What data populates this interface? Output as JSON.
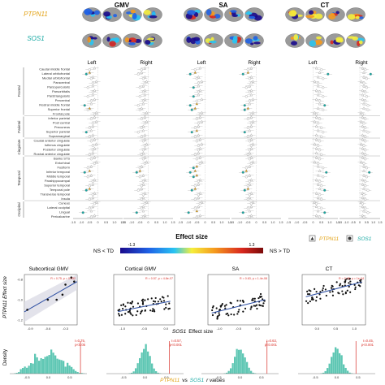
{
  "chart_data": [
    {
      "type": "scatter",
      "panel": "effect-size forest plot",
      "measures": [
        "GMV",
        "SA",
        "CT"
      ],
      "hemispheres": [
        "Left",
        "Right"
      ],
      "genes": [
        "PTPN11",
        "SOS1"
      ],
      "gene_colors": {
        "PTPN11": "#e3a317",
        "SOS1": "#17a9a3"
      },
      "xticks": [
        "-1.5",
        "-1.0",
        "-0.5",
        "0",
        "0.5",
        "1.0",
        "1.5"
      ],
      "xlim": [
        -1.5,
        1.5
      ],
      "regions": [
        "Caudal middle frontal",
        "Lateral orbitofrontal",
        "Medial orbitofrontal",
        "Paracentral",
        "Parsopercularis",
        "Parsorbitalis",
        "Parstriangularis",
        "Precentral",
        "Rostral middle frontal",
        "Superior frontal",
        "Frontal pole",
        "Inferior parietal",
        "Post central",
        "Precuneus",
        "Superior parietal",
        "Supramarginal",
        "Caudal anterior cingulate",
        "Isthmus cingulate",
        "Posterior cingulate",
        "Rostral anterior cingulate",
        "Banks STS",
        "Entorhinal",
        "Fusiform",
        "Inferior temporal",
        "Middle temporal",
        "Parahippocampal",
        "Superior temporal",
        "Temporal pole",
        "Transverse temporal",
        "Insula",
        "Cuneus",
        "Lateral occipital",
        "Lingual",
        "Pericalcarine"
      ],
      "lobes": [
        {
          "name": "Frontal",
          "start": 0,
          "end": 10
        },
        {
          "name": "Parietal",
          "start": 11,
          "end": 15
        },
        {
          "name": "Cingulate",
          "start": 16,
          "end": 19
        },
        {
          "name": "Temporal",
          "start": 20,
          "end": 29
        },
        {
          "name": "Occipital",
          "start": 30,
          "end": 33
        }
      ],
      "series": [
        {
          "name": "PTPN11",
          "measure": "GMV",
          "hemisphere": "Left",
          "values": [
            -0.2,
            -0.5,
            -0.3,
            -0.1,
            -0.3,
            -0.2,
            -0.3,
            -0.2,
            -0.4,
            -0.5,
            -0.1,
            -0.2,
            -0.1,
            -0.3,
            -0.4,
            -0.3,
            -0.2,
            -0.1,
            -0.2,
            -0.3,
            -0.2,
            -0.1,
            -0.4,
            -0.5,
            -0.4,
            -0.2,
            -0.3,
            -0.5,
            -0.2,
            -0.3,
            -0.1,
            -0.3,
            -0.4,
            -0.2
          ]
        },
        {
          "name": "SOS1",
          "measure": "GMV",
          "hemisphere": "Left",
          "values": [
            -0.5,
            -0.7,
            -0.4,
            -0.3,
            -0.6,
            -0.3,
            -0.6,
            -0.4,
            -0.8,
            -0.6,
            -0.2,
            -0.4,
            -0.3,
            -0.5,
            -0.7,
            -0.5,
            -0.4,
            -0.3,
            -0.3,
            -0.5,
            -0.4,
            -0.2,
            -0.6,
            -0.8,
            -0.6,
            -0.3,
            -0.5,
            -0.7,
            -0.3,
            -0.5,
            -0.2,
            -0.5,
            -0.9,
            -0.4
          ]
        },
        {
          "name": "PTPN11",
          "measure": "GMV",
          "hemisphere": "Right",
          "values": [
            -0.2,
            -0.4,
            -0.2,
            -0.1,
            -0.3,
            -0.2,
            -0.2,
            -0.2,
            -0.3,
            -0.4,
            -0.1,
            -0.2,
            -0.1,
            -0.3,
            -0.3,
            -0.2,
            -0.2,
            -0.1,
            -0.2,
            -0.3,
            -0.2,
            -0.1,
            -0.4,
            -0.5,
            -0.3,
            -0.2,
            -0.3,
            -0.4,
            -0.2,
            -0.3,
            -0.1,
            -0.3,
            -0.3,
            -0.2
          ]
        },
        {
          "name": "SOS1",
          "measure": "GMV",
          "hemisphere": "Right",
          "values": [
            -0.4,
            -0.6,
            -0.3,
            -0.2,
            -0.5,
            -0.3,
            -0.5,
            -0.3,
            -0.6,
            -0.5,
            -0.2,
            -0.4,
            -0.2,
            -0.4,
            -0.6,
            -0.4,
            -0.3,
            -0.2,
            -0.3,
            -0.4,
            -0.3,
            -0.2,
            -0.5,
            -0.7,
            -0.5,
            -0.3,
            -0.4,
            -0.6,
            -0.3,
            -0.4,
            -0.2,
            -0.4,
            -0.7,
            -0.3
          ]
        },
        {
          "name": "PTPN11",
          "measure": "SA",
          "hemisphere": "Left",
          "values": [
            -0.3,
            -0.6,
            -0.4,
            -0.2,
            -0.4,
            -0.3,
            -0.4,
            -0.2,
            -0.5,
            -0.6,
            -0.2,
            -0.3,
            -0.2,
            -0.4,
            -0.5,
            -0.4,
            -0.3,
            -0.2,
            -0.3,
            -0.4,
            -0.3,
            -0.2,
            -0.5,
            -0.6,
            -0.5,
            -0.3,
            -0.4,
            -0.6,
            -0.3,
            -0.4,
            -0.2,
            -0.4,
            -0.5,
            -0.3
          ]
        },
        {
          "name": "SOS1",
          "measure": "SA",
          "hemisphere": "Left",
          "values": [
            -0.6,
            -0.9,
            -0.5,
            -0.4,
            -0.7,
            -0.4,
            -0.7,
            -0.5,
            -0.9,
            -0.8,
            -0.3,
            -0.5,
            -0.4,
            -0.6,
            -0.8,
            -0.6,
            -0.5,
            -0.4,
            -0.4,
            -0.6,
            -0.5,
            -0.3,
            -0.7,
            -0.9,
            -0.7,
            -0.4,
            -0.6,
            -0.8,
            -0.4,
            -0.6,
            -0.3,
            -0.6,
            -1.0,
            -0.5
          ]
        },
        {
          "name": "PTPN11",
          "measure": "SA",
          "hemisphere": "Right",
          "values": [
            -0.3,
            -0.5,
            -0.3,
            -0.2,
            -0.4,
            -0.3,
            -0.3,
            -0.2,
            -0.4,
            -0.5,
            -0.2,
            -0.3,
            -0.2,
            -0.3,
            -0.4,
            -0.3,
            -0.3,
            -0.2,
            -0.3,
            -0.4,
            -0.3,
            -0.2,
            -0.4,
            -0.6,
            -0.4,
            -0.3,
            -0.4,
            -0.5,
            -0.3,
            -0.4,
            -0.2,
            -0.3,
            -0.4,
            -0.3
          ]
        },
        {
          "name": "SOS1",
          "measure": "SA",
          "hemisphere": "Right",
          "values": [
            -0.5,
            -0.8,
            -0.4,
            -0.3,
            -0.6,
            -0.4,
            -0.6,
            -0.4,
            -0.7,
            -0.7,
            -0.3,
            -0.5,
            -0.3,
            -0.5,
            -0.7,
            -0.5,
            -0.4,
            -0.3,
            -0.4,
            -0.5,
            -0.4,
            -0.3,
            -0.6,
            -0.8,
            -0.6,
            -0.4,
            -0.5,
            -0.7,
            -0.4,
            -0.5,
            -0.3,
            -0.5,
            -0.8,
            -0.4
          ]
        },
        {
          "name": "PTPN11",
          "measure": "CT",
          "hemisphere": "Left",
          "values": [
            0.2,
            0.4,
            0.3,
            0.1,
            0.3,
            0.2,
            0.3,
            0.2,
            0.4,
            0.3,
            0.1,
            0.2,
            0.1,
            0.2,
            0.3,
            0.2,
            0.2,
            0.1,
            0.2,
            0.2,
            0.2,
            0.1,
            0.3,
            0.4,
            0.3,
            0.2,
            0.3,
            0.4,
            0.2,
            0.3,
            0.1,
            0.2,
            0.3,
            0.2
          ]
        },
        {
          "name": "SOS1",
          "measure": "CT",
          "hemisphere": "Left",
          "values": [
            0.5,
            0.9,
            0.6,
            0.3,
            0.6,
            0.4,
            0.6,
            0.4,
            0.7,
            0.6,
            0.2,
            0.4,
            0.3,
            0.5,
            0.6,
            0.5,
            0.4,
            0.3,
            0.4,
            0.5,
            0.4,
            0.3,
            0.6,
            0.8,
            0.6,
            0.4,
            0.5,
            0.7,
            0.4,
            0.5,
            0.2,
            0.5,
            0.7,
            0.4
          ]
        },
        {
          "name": "PTPN11",
          "measure": "CT",
          "hemisphere": "Right",
          "values": [
            0.2,
            0.3,
            0.3,
            0.1,
            0.3,
            0.2,
            0.2,
            0.2,
            0.3,
            0.3,
            0.1,
            0.2,
            0.1,
            0.2,
            0.3,
            0.2,
            0.2,
            0.1,
            0.2,
            0.2,
            0.2,
            0.1,
            0.3,
            0.3,
            0.3,
            0.2,
            0.2,
            0.3,
            0.2,
            0.2,
            0.1,
            0.2,
            0.3,
            0.2
          ]
        },
        {
          "name": "SOS1",
          "measure": "CT",
          "hemisphere": "Right",
          "values": [
            0.4,
            0.8,
            0.5,
            0.3,
            0.5,
            0.4,
            0.5,
            0.4,
            0.6,
            0.6,
            0.2,
            0.4,
            0.3,
            0.4,
            0.6,
            0.4,
            0.4,
            0.3,
            0.4,
            0.4,
            0.4,
            0.3,
            0.5,
            0.7,
            0.5,
            0.4,
            0.4,
            0.6,
            0.3,
            0.4,
            0.2,
            0.4,
            0.6,
            0.3
          ]
        }
      ],
      "xlabel": "Effect size",
      "colorbar": {
        "min": "-1.3",
        "max": "1.3",
        "left_label": "NS < TD",
        "right_label": "NS > TD"
      }
    },
    {
      "type": "scatter",
      "panel": "Subcortical GMV",
      "title": "Subcortical GMV",
      "annotation": "R = 0.75, p = 0.032",
      "xlim": [
        -1.0,
        -0.1
      ],
      "ylim": [
        -1.25,
        -0.75
      ],
      "xticks": [
        "-0.9",
        "-0.6",
        "-0.3"
      ],
      "yticks": [
        "-0.8",
        "-1.0",
        "-1.2"
      ],
      "x": [
        -0.95,
        -0.6,
        -0.45,
        -0.35,
        -0.3,
        -0.2,
        -0.15
      ],
      "y": [
        -1.1,
        -1.0,
        -1.0,
        -0.95,
        -0.85,
        -0.78,
        -0.82
      ]
    },
    {
      "type": "scatter",
      "panel": "Cortical GMV",
      "title": "Cortical GMV",
      "annotation": "R = 0.57, p = 4.8e-07",
      "xlim": [
        -1.2,
        0.2
      ],
      "xticks": [
        "-1.0",
        "-0.5",
        "0.0"
      ],
      "fit": [
        [
          -1.1,
          -0.45
        ],
        [
          0.1,
          -0.1
        ]
      ]
    },
    {
      "type": "scatter",
      "panel": "SA",
      "title": "SA",
      "annotation": "R = 0.63, p = 1.4e-08",
      "xlim": [
        -1.3,
        0.3
      ],
      "xticks": [
        "-1.0",
        "-0.5",
        "0.0"
      ],
      "fit": [
        [
          -1.2,
          -0.5
        ],
        [
          0.2,
          -0.05
        ]
      ]
    },
    {
      "type": "scatter",
      "panel": "CT",
      "title": "CT",
      "annotation": "R = 0.45, p = 1e-04",
      "xlim": [
        -0.4,
        1.3
      ],
      "xticks": [
        "0.0",
        "0.5",
        "1.0"
      ],
      "fit": [
        [
          -0.3,
          0.05
        ],
        [
          1.2,
          0.55
        ]
      ]
    },
    {
      "type": "bar",
      "panel": "density row",
      "histograms": [
        {
          "observed": "r=0.75,",
          "p": "p<0.05",
          "observed_r": 0.75,
          "xticks": [
            "-0.5",
            "0.0",
            "0.5"
          ],
          "xlim": [
            -0.9,
            0.9
          ]
        },
        {
          "observed": "r=0.57,",
          "p": "p<0.001",
          "observed_r": 0.57,
          "xticks": [
            "-0.5",
            "0.0",
            "0.5"
          ],
          "xlim": [
            -0.9,
            0.9
          ]
        },
        {
          "observed": "r=0.63,",
          "p": "p<0.001",
          "observed_r": 0.63,
          "xticks": [
            "-0.5",
            "0.0",
            "0.5"
          ],
          "xlim": [
            -0.9,
            0.9
          ]
        },
        {
          "observed": "r=0.45,",
          "p": "p<0.001",
          "observed_r": 0.45,
          "xticks": [
            "-0.5",
            "0.0",
            "0.5"
          ],
          "xlim": [
            -0.9,
            0.9
          ]
        }
      ],
      "ylabel": "Density",
      "xlabel_parts": [
        "PTPN11",
        "vs",
        "SOS1",
        "r values"
      ]
    }
  ],
  "labels": {
    "measure_gmv": "GMV",
    "measure_sa": "SA",
    "measure_ct": "CT",
    "gene1": "PTPN11",
    "gene2": "SOS1",
    "left": "Left",
    "right": "Right",
    "effect_size": "Effect size",
    "cb_min": "-1.3",
    "cb_max": "1.3",
    "ns_lt": "NS < TD",
    "ns_gt": "NS > TD",
    "legend_ptpn11": "PTPN11",
    "legend_sos1": "SOS1",
    "scatter_ylabel": "PTPN11 Effect size",
    "scatter_xlabel_gene": "SOS1",
    "scatter_xlabel_rest": "Effect size",
    "density": "Density",
    "bottom_gene1": "PTPN11",
    "bottom_vs": "vs",
    "bottom_gene2": "SOS1",
    "bottom_r": "r values"
  },
  "colors": {
    "ptpn11": "#e3a317",
    "sos1": "#17a9a3",
    "fit_line": "#2c4ea3",
    "hist": "#5fc7b4",
    "red_line": "#d9312a",
    "cmap": [
      "#1a0a8c",
      "#1f62e6",
      "#29c4f2",
      "#f5ee3c",
      "#f59a1e",
      "#d9281e",
      "#7a0a0a"
    ]
  }
}
